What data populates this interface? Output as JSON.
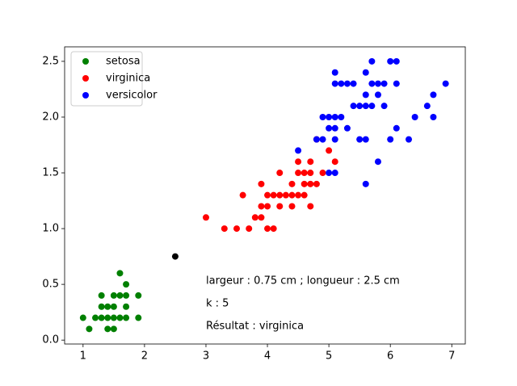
{
  "chart_data": {
    "type": "scatter",
    "xlim": [
      0.7,
      7.22
    ],
    "ylim": [
      -0.035,
      2.63
    ],
    "xticks": [
      1,
      2,
      3,
      4,
      5,
      6,
      7
    ],
    "yticks": [
      {
        "value": 0,
        "label": "0.0"
      },
      0.5,
      {
        "value": 1,
        "label": "1.0"
      },
      1.5,
      {
        "value": 2,
        "label": "2.0"
      },
      2.5
    ],
    "legend": "upper left",
    "series": [
      {
        "name": "setosa",
        "color": "green",
        "x": [
          1.0,
          1.1,
          1.2,
          1.3,
          1.3,
          1.3,
          1.4,
          1.4,
          1.4,
          1.5,
          1.5,
          1.5,
          1.5,
          1.6,
          1.6,
          1.6,
          1.7,
          1.7,
          1.7,
          1.7,
          1.9,
          1.9
        ],
        "y": [
          0.2,
          0.1,
          0.2,
          0.2,
          0.3,
          0.4,
          0.1,
          0.2,
          0.3,
          0.1,
          0.2,
          0.3,
          0.4,
          0.2,
          0.4,
          0.6,
          0.2,
          0.3,
          0.4,
          0.5,
          0.2,
          0.4
        ]
      },
      {
        "name": "virginica",
        "color": "red",
        "x": [
          3.0,
          3.3,
          3.5,
          3.6,
          3.7,
          3.8,
          3.9,
          3.9,
          3.9,
          4.0,
          4.0,
          4.0,
          4.1,
          4.1,
          4.2,
          4.2,
          4.2,
          4.3,
          4.4,
          4.4,
          4.4,
          4.5,
          4.5,
          4.5,
          4.6,
          4.6,
          4.6,
          4.7,
          4.7,
          4.7,
          4.7,
          4.8,
          4.8,
          4.9,
          5.0,
          5.1
        ],
        "y": [
          1.1,
          1.0,
          1.0,
          1.3,
          1.0,
          1.1,
          1.1,
          1.2,
          1.4,
          1.0,
          1.2,
          1.3,
          1.0,
          1.3,
          1.2,
          1.3,
          1.5,
          1.3,
          1.2,
          1.3,
          1.4,
          1.3,
          1.5,
          1.6,
          1.3,
          1.4,
          1.5,
          1.2,
          1.4,
          1.5,
          1.6,
          1.4,
          1.8,
          1.5,
          1.7,
          1.6
        ]
      },
      {
        "name": "versicolor",
        "color": "blue",
        "x": [
          4.5,
          4.8,
          4.9,
          4.9,
          5.0,
          5.0,
          5.0,
          5.1,
          5.1,
          5.1,
          5.1,
          5.1,
          5.1,
          5.2,
          5.2,
          5.3,
          5.3,
          5.4,
          5.4,
          5.5,
          5.5,
          5.6,
          5.6,
          5.6,
          5.6,
          5.6,
          5.7,
          5.7,
          5.7,
          5.8,
          5.8,
          5.8,
          5.9,
          5.9,
          6.0,
          6.0,
          6.1,
          6.1,
          6.1,
          6.3,
          6.4,
          6.6,
          6.7,
          6.7,
          6.9
        ],
        "y": [
          1.7,
          1.8,
          1.8,
          2.0,
          1.5,
          1.9,
          2.0,
          1.5,
          1.8,
          1.9,
          2.0,
          2.3,
          2.4,
          2.0,
          2.3,
          1.9,
          2.3,
          2.1,
          2.3,
          1.8,
          2.1,
          1.4,
          1.8,
          2.1,
          2.2,
          2.4,
          2.1,
          2.3,
          2.5,
          1.6,
          2.2,
          2.3,
          2.1,
          2.3,
          1.8,
          2.5,
          1.9,
          2.3,
          2.5,
          1.8,
          2.0,
          2.1,
          2.0,
          2.2,
          2.3
        ]
      }
    ],
    "query": {
      "x": 2.5,
      "y": 0.75,
      "color": "black"
    },
    "annotations": [
      "largeur : 0.75 cm ; longueur : 2.5 cm",
      "k : 5",
      "Résultat : virginica"
    ]
  }
}
